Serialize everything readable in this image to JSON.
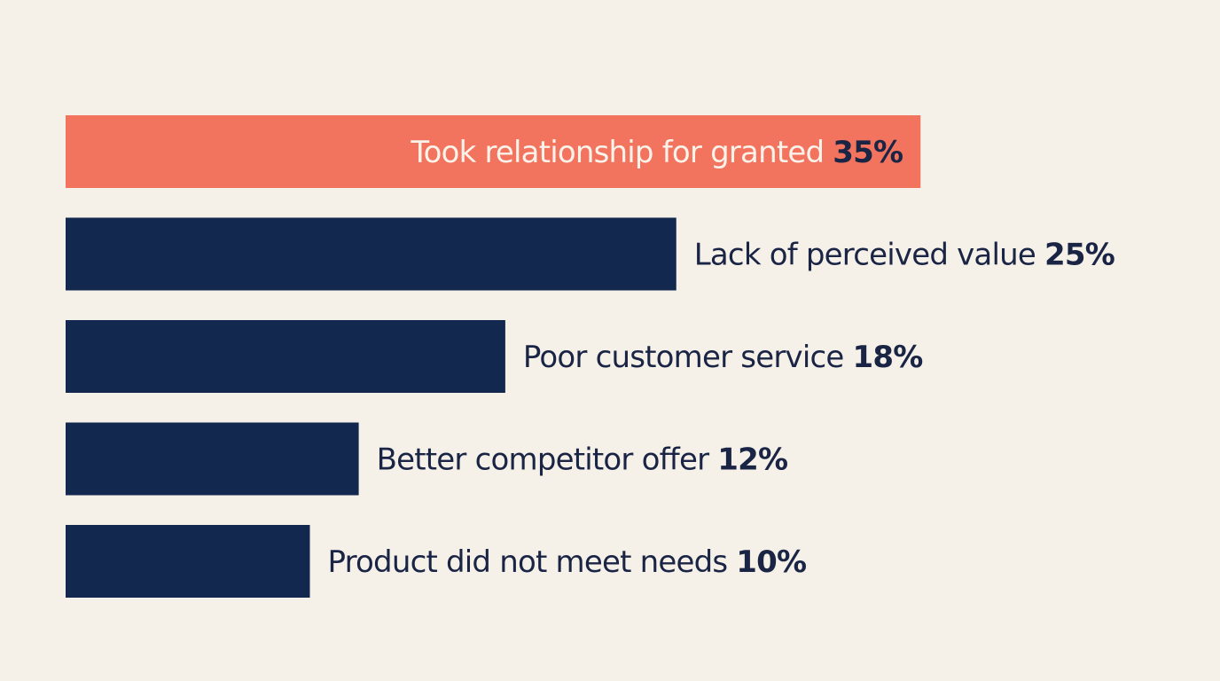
{
  "colors": {
    "background": "#f5f1e8",
    "highlight_bar": "#f2735e",
    "bar": "#13284f",
    "label_dark": "#1a2444",
    "label_light": "#fbf3ea"
  },
  "chart_data": {
    "type": "bar",
    "orientation": "horizontal",
    "categories": [
      "Took relationship for granted",
      "Lack of perceived value",
      "Poor customer service",
      "Better competitor offer",
      "Product did not meet needs"
    ],
    "values": [
      35,
      25,
      18,
      12,
      10
    ],
    "value_labels": [
      "35%",
      "25%",
      "18%",
      "12%",
      "10%"
    ],
    "unit": "%",
    "highlight_index": 0,
    "title": "",
    "xlabel": "",
    "ylabel": "",
    "grid": false,
    "legend": "none"
  }
}
